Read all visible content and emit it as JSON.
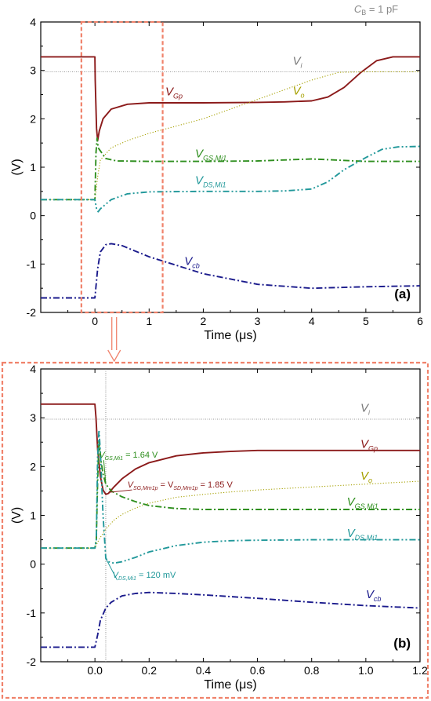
{
  "note": {
    "text": "C",
    "sub": "B",
    "rest": " = 1 pF"
  },
  "colors": {
    "vi": "#7a7a7a",
    "vgp": "#8b1a1a",
    "vo": "#a6a000",
    "vgs": "#2f8f1f",
    "vds": "#21989a",
    "vcb": "#1a1a8c",
    "highlight": "#f0826b"
  },
  "chart_data": [
    {
      "type": "line",
      "panel": "(a)",
      "xlabel": "Time (μs)",
      "ylabel": "(V)",
      "xlim": [
        -1,
        6
      ],
      "ylim": [
        -2,
        4
      ],
      "xticks": [
        0,
        1,
        2,
        3,
        4,
        5,
        6
      ],
      "yticks": [
        -2,
        -1,
        0,
        1,
        2,
        3,
        4
      ],
      "highlight_box_x": [
        -0.25,
        1.25
      ],
      "series": [
        {
          "key": "vi",
          "name": "Vi",
          "style": "thin",
          "x": [
            -1,
            6
          ],
          "y": [
            2.97,
            2.97
          ]
        },
        {
          "key": "vgp",
          "name": "VGp",
          "style": "solid",
          "x": [
            -1,
            0,
            0.005,
            0.03,
            0.05,
            0.08,
            0.15,
            0.3,
            0.6,
            1.0,
            2.0,
            3.0,
            3.5,
            4.0,
            4.3,
            4.6,
            4.9,
            5.2,
            5.5,
            6.0
          ],
          "y": [
            3.28,
            3.28,
            2.8,
            1.8,
            1.55,
            1.75,
            2.0,
            2.2,
            2.3,
            2.33,
            2.33,
            2.34,
            2.35,
            2.37,
            2.45,
            2.65,
            2.95,
            3.2,
            3.28,
            3.28
          ]
        },
        {
          "key": "vo",
          "name": "Vo",
          "style": "dotted",
          "x": [
            -1,
            0,
            0.05,
            0.1,
            0.3,
            0.6,
            1.0,
            1.5,
            2.0,
            2.5,
            3.0,
            3.5,
            4.0,
            4.5,
            5.0,
            5.5,
            6.0
          ],
          "y": [
            0.33,
            0.33,
            0.8,
            1.15,
            1.4,
            1.55,
            1.7,
            1.85,
            2.0,
            2.2,
            2.4,
            2.6,
            2.8,
            2.96,
            2.97,
            2.97,
            2.97
          ]
        },
        {
          "key": "vgs",
          "name": "VGS,Mi1",
          "style": "dashdot",
          "x": [
            -1,
            0,
            0.02,
            0.04,
            0.06,
            0.2,
            0.4,
            1.0,
            2.0,
            3.0,
            4.0,
            5.0,
            6.0
          ],
          "y": [
            0.33,
            0.33,
            1.3,
            1.6,
            1.4,
            1.18,
            1.13,
            1.12,
            1.12,
            1.13,
            1.17,
            1.12,
            1.12
          ]
        },
        {
          "key": "vds",
          "name": "VDS,Mi1",
          "style": "dashdotdot",
          "x": [
            -1,
            0,
            0.03,
            0.06,
            0.1,
            0.3,
            0.6,
            1.0,
            2.0,
            3.0,
            3.5,
            4.0,
            4.3,
            4.6,
            5.0,
            5.3,
            5.6,
            6.0
          ],
          "y": [
            0.33,
            0.33,
            0.14,
            0.08,
            0.14,
            0.33,
            0.45,
            0.49,
            0.5,
            0.5,
            0.51,
            0.55,
            0.7,
            0.95,
            1.2,
            1.37,
            1.42,
            1.43
          ]
        },
        {
          "key": "vcb",
          "name": "Vcb",
          "style": "dashdot",
          "x": [
            -1,
            0,
            0.05,
            0.1,
            0.2,
            0.3,
            0.5,
            1.0,
            2.0,
            3.0,
            4.0,
            5.0,
            6.0
          ],
          "y": [
            -1.7,
            -1.7,
            -1.1,
            -0.75,
            -0.6,
            -0.58,
            -0.62,
            -0.85,
            -1.2,
            -1.42,
            -1.5,
            -1.47,
            -1.45
          ]
        }
      ],
      "labels": [
        {
          "key": "vi",
          "main": "V",
          "sub": "i",
          "x": 3.65,
          "y": 3.12,
          "italic": true
        },
        {
          "key": "vgp",
          "main": "V",
          "sub": "Gp",
          "x": 1.3,
          "y": 2.48,
          "italic": true
        },
        {
          "key": "vo",
          "main": "V",
          "sub": "o",
          "x": 3.65,
          "y": 2.5,
          "italic": true
        },
        {
          "key": "vgs",
          "main": "V",
          "sub": "GS,Mi1",
          "x": 1.85,
          "y": 1.2,
          "italic": true
        },
        {
          "key": "vds",
          "main": "V",
          "sub": "DS,Mi1",
          "x": 1.85,
          "y": 0.65,
          "italic": true
        },
        {
          "key": "vcb",
          "main": "V",
          "sub": "cb",
          "x": 1.65,
          "y": -1.02,
          "italic": true
        }
      ]
    },
    {
      "type": "line",
      "panel": "(b)",
      "xlabel": "Time (μs)",
      "ylabel": "(V)",
      "xlim": [
        -0.2,
        1.2
      ],
      "ylim": [
        -2,
        4
      ],
      "xticks": [
        0.0,
        0.2,
        0.4,
        0.6,
        0.8,
        1.0,
        1.2
      ],
      "xtick_labels": [
        "0.0",
        "0.2",
        "0.4",
        "0.6",
        "0.8",
        "1.0",
        "1.2"
      ],
      "yticks": [
        -2,
        -1,
        0,
        1,
        2,
        3,
        4
      ],
      "marker_x": 0.04,
      "series": [
        {
          "key": "vi",
          "name": "Vi",
          "style": "thin",
          "x": [
            -0.2,
            1.2
          ],
          "y": [
            2.97,
            2.97
          ]
        },
        {
          "key": "vgp",
          "name": "VGp",
          "style": "solid",
          "x": [
            -0.2,
            0,
            0.004,
            0.01,
            0.02,
            0.03,
            0.04,
            0.05,
            0.07,
            0.1,
            0.15,
            0.2,
            0.3,
            0.4,
            0.5,
            0.6,
            0.8,
            1.0,
            1.2
          ],
          "y": [
            3.28,
            3.28,
            3.0,
            2.35,
            1.8,
            1.52,
            1.43,
            1.45,
            1.58,
            1.75,
            1.95,
            2.08,
            2.22,
            2.28,
            2.31,
            2.33,
            2.33,
            2.33,
            2.33
          ]
        },
        {
          "key": "vo",
          "name": "Vo",
          "style": "dotted",
          "x": [
            -0.2,
            0,
            0.01,
            0.02,
            0.04,
            0.07,
            0.1,
            0.15,
            0.2,
            0.3,
            0.4,
            0.5,
            0.6,
            0.8,
            1.0,
            1.2
          ],
          "y": [
            0.33,
            0.33,
            0.45,
            0.55,
            0.72,
            0.9,
            1.02,
            1.15,
            1.25,
            1.37,
            1.43,
            1.48,
            1.52,
            1.58,
            1.64,
            1.7
          ]
        },
        {
          "key": "vgs",
          "name": "VGS,Mi1",
          "style": "dashdot",
          "x": [
            -0.2,
            0,
            0.005,
            0.01,
            0.015,
            0.02,
            0.03,
            0.04,
            0.06,
            0.1,
            0.15,
            0.2,
            0.3,
            0.4,
            0.6,
            0.8,
            1.0,
            1.2
          ],
          "y": [
            0.33,
            0.33,
            0.5,
            1.7,
            2.55,
            2.2,
            1.85,
            1.64,
            1.5,
            1.38,
            1.28,
            1.2,
            1.14,
            1.12,
            1.12,
            1.12,
            1.12,
            1.12
          ]
        },
        {
          "key": "vds",
          "name": "VDS,Mi1",
          "style": "dashdotdot",
          "x": [
            -0.2,
            0,
            0.005,
            0.01,
            0.015,
            0.02,
            0.03,
            0.04,
            0.05,
            0.07,
            0.1,
            0.15,
            0.2,
            0.3,
            0.4,
            0.5,
            0.6,
            0.8,
            1.0,
            1.2
          ],
          "y": [
            0.33,
            0.33,
            0.5,
            2.2,
            2.75,
            2.3,
            1.0,
            0.12,
            0.05,
            0.02,
            0.05,
            0.14,
            0.25,
            0.38,
            0.45,
            0.48,
            0.49,
            0.5,
            0.5,
            0.5
          ]
        },
        {
          "key": "vcb",
          "name": "Vcb",
          "style": "dashdot",
          "x": [
            -0.2,
            0,
            0.01,
            0.02,
            0.04,
            0.06,
            0.1,
            0.15,
            0.2,
            0.3,
            0.4,
            0.6,
            0.8,
            1.0,
            1.2
          ],
          "y": [
            -1.7,
            -1.7,
            -1.45,
            -1.15,
            -0.9,
            -0.78,
            -0.65,
            -0.6,
            -0.58,
            -0.6,
            -0.63,
            -0.7,
            -0.78,
            -0.85,
            -0.9
          ]
        }
      ],
      "labels": [
        {
          "key": "vi",
          "main": "V",
          "sub": "i",
          "x": 0.98,
          "y": 3.12,
          "italic": true
        },
        {
          "key": "vgp",
          "main": "V",
          "sub": "Gp",
          "x": 0.98,
          "y": 2.38,
          "italic": true
        },
        {
          "key": "vo",
          "main": "V",
          "sub": "o",
          "x": 0.98,
          "y": 1.73,
          "italic": true
        },
        {
          "key": "vgs",
          "main": "V",
          "sub": "GS,Mi1",
          "x": 0.93,
          "y": 1.2,
          "italic": true
        },
        {
          "key": "vds",
          "main": "V",
          "sub": "DS,Mi1",
          "x": 0.93,
          "y": 0.56,
          "italic": true
        },
        {
          "key": "vcb",
          "main": "V",
          "sub": "cb",
          "x": 1.0,
          "y": -0.7,
          "italic": true
        }
      ],
      "annotations": [
        {
          "key": "vgs",
          "main": "V",
          "sub": "GS,Mi1",
          "value": " = 1.64 V",
          "x": 0.015,
          "y": 2.18,
          "tx": 0.04,
          "ty": 1.64
        },
        {
          "key": "vgp",
          "main": "V",
          "sub": "SG,Mm1p",
          "mid": " = V",
          "sub2": "SD,Mm1p",
          "value": " = 1.85 V",
          "x": 0.12,
          "y": 1.57,
          "tx": 0.05,
          "ty": 1.47
        },
        {
          "key": "vds",
          "main": "V",
          "sub": "DS,Mi1",
          "value": " = 120 mV",
          "x": 0.065,
          "y": -0.28,
          "tx": 0.04,
          "ty": 0.12
        }
      ]
    }
  ]
}
